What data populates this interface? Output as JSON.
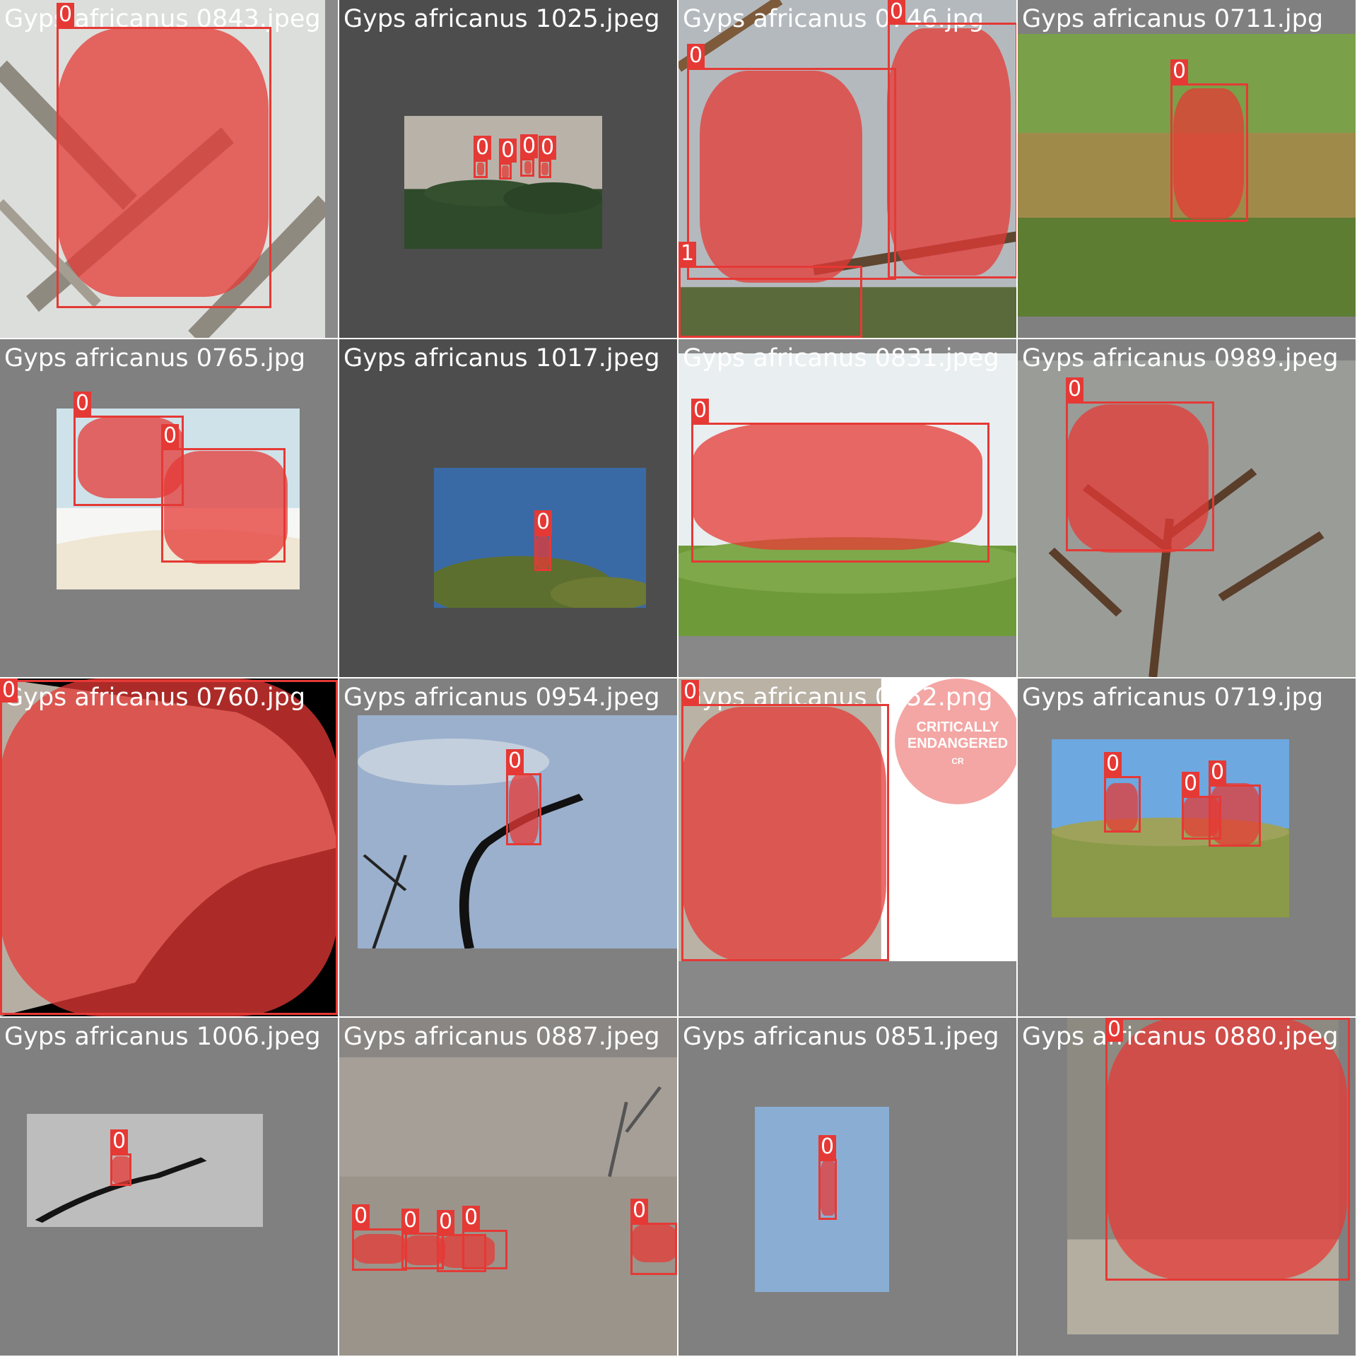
{
  "tiles": [
    {
      "title": "Gyps africanus 0843.jpeg",
      "bg": "#8a8a8a",
      "photo": {
        "l": 0,
        "t": 0,
        "w": 460,
        "h": 478,
        "scene": "branches-light"
      },
      "masks": [
        {
          "l": 80,
          "t": 40,
          "w": 300,
          "h": 380
        }
      ],
      "boxes": [
        {
          "cls": "0",
          "l": 80,
          "t": 38,
          "w": 304,
          "h": 398
        }
      ]
    },
    {
      "title": "Gyps africanus 1025.jpeg",
      "bg": "#4d4d4d",
      "photo": {
        "l": 92,
        "t": 164,
        "w": 280,
        "h": 188,
        "scene": "treetop-dusk"
      },
      "masks": [
        {
          "l": 195,
          "t": 230,
          "w": 10,
          "h": 18
        },
        {
          "l": 230,
          "t": 234,
          "w": 10,
          "h": 18
        },
        {
          "l": 262,
          "t": 228,
          "w": 10,
          "h": 18
        },
        {
          "l": 286,
          "t": 230,
          "w": 10,
          "h": 18
        }
      ],
      "boxes": [
        {
          "cls": "0",
          "l": 190,
          "t": 226,
          "w": 20,
          "h": 26
        },
        {
          "cls": "0",
          "l": 226,
          "t": 230,
          "w": 18,
          "h": 24
        },
        {
          "cls": "0",
          "l": 256,
          "t": 224,
          "w": 20,
          "h": 26
        },
        {
          "cls": "0",
          "l": 282,
          "t": 226,
          "w": 18,
          "h": 26
        }
      ]
    },
    {
      "title": "Gyps africanus 0746.jpg",
      "bg": "#888888",
      "photo": {
        "l": 0,
        "t": 0,
        "w": 478,
        "h": 478,
        "scene": "vultures-sky"
      },
      "masks": [
        {
          "l": 30,
          "t": 100,
          "w": 230,
          "h": 300
        },
        {
          "l": 295,
          "t": 40,
          "w": 175,
          "h": 350
        }
      ],
      "boxes": [
        {
          "cls": "0",
          "l": 12,
          "t": 96,
          "w": 296,
          "h": 300
        },
        {
          "cls": "0",
          "l": 296,
          "t": 32,
          "w": 184,
          "h": 362
        },
        {
          "cls": "1",
          "l": 0,
          "t": 376,
          "w": 260,
          "h": 102
        }
      ]
    },
    {
      "title": "Gyps africanus 0711.jpg",
      "bg": "#808080",
      "photo": {
        "l": 0,
        "t": 48,
        "w": 478,
        "h": 400,
        "scene": "green-field"
      },
      "masks": [
        {
          "l": 220,
          "t": 125,
          "w": 100,
          "h": 185
        }
      ],
      "boxes": [
        {
          "cls": "0",
          "l": 216,
          "t": 118,
          "w": 110,
          "h": 196
        }
      ]
    },
    {
      "title": "Gyps africanus 0765.jpg",
      "bg": "#808080",
      "photo": {
        "l": 80,
        "t": 98,
        "w": 344,
        "h": 256,
        "scene": "illustration"
      },
      "masks": [
        {
          "l": 110,
          "t": 110,
          "w": 150,
          "h": 115
        },
        {
          "l": 232,
          "t": 158,
          "w": 175,
          "h": 160
        }
      ],
      "boxes": [
        {
          "cls": "0",
          "l": 104,
          "t": 108,
          "w": 156,
          "h": 128
        },
        {
          "cls": "0",
          "l": 228,
          "t": 154,
          "w": 176,
          "h": 162
        }
      ]
    },
    {
      "title": "Gyps africanus 1017.jpeg",
      "bg": "#4d4d4d",
      "photo": {
        "l": 134,
        "t": 182,
        "w": 300,
        "h": 198,
        "scene": "blue-tree"
      },
      "masks": [
        {
          "l": 278,
          "t": 278,
          "w": 20,
          "h": 48
        }
      ],
      "boxes": [
        {
          "cls": "0",
          "l": 276,
          "t": 276,
          "w": 24,
          "h": 52
        }
      ]
    },
    {
      "title": "Gyps africanus 0831.jpeg",
      "bg": "#888888",
      "photo": {
        "l": 0,
        "t": 20,
        "w": 478,
        "h": 400,
        "scene": "wings-spread"
      },
      "masks": [
        {
          "l": 20,
          "t": 118,
          "w": 410,
          "h": 180
        }
      ],
      "boxes": [
        {
          "cls": "0",
          "l": 18,
          "t": 118,
          "w": 422,
          "h": 198
        }
      ]
    },
    {
      "title": "Gyps africanus 0989.jpeg",
      "bg": "#808080",
      "photo": {
        "l": 0,
        "t": 30,
        "w": 478,
        "h": 448,
        "scene": "grey-branches"
      },
      "masks": [
        {
          "l": 70,
          "t": 92,
          "w": 200,
          "h": 210
        }
      ],
      "boxes": [
        {
          "cls": "0",
          "l": 68,
          "t": 88,
          "w": 210,
          "h": 212
        }
      ]
    },
    {
      "title": "Gyps africanus 0760.jpg",
      "bg": "#000000",
      "photo": {
        "l": 0,
        "t": 0,
        "w": 478,
        "h": 478,
        "scene": "head-closeup"
      },
      "masks": [
        {
          "l": 0,
          "t": 0,
          "w": 478,
          "h": 478
        }
      ],
      "boxes": [
        {
          "cls": "0",
          "l": 0,
          "t": 2,
          "w": 478,
          "h": 474
        }
      ]
    },
    {
      "title": "Gyps africanus 0954.jpeg",
      "bg": "#808080",
      "photo": {
        "l": 26,
        "t": 52,
        "w": 452,
        "h": 330,
        "scene": "dead-branch-sky"
      },
      "masks": [
        {
          "l": 240,
          "t": 136,
          "w": 42,
          "h": 100
        }
      ],
      "boxes": [
        {
          "cls": "0",
          "l": 236,
          "t": 134,
          "w": 50,
          "h": 102
        }
      ]
    },
    {
      "title": "Gyps africanus 0752.png",
      "bg": "#888888",
      "photo": {
        "l": 0,
        "t": 0,
        "w": 478,
        "h": 400,
        "scene": "neck-closeup"
      },
      "masks": [
        {
          "l": 4,
          "t": 40,
          "w": 290,
          "h": 360
        }
      ],
      "boxes": [
        {
          "cls": "0",
          "l": 4,
          "t": 36,
          "w": 294,
          "h": 364
        }
      ]
    },
    {
      "title": "Gyps africanus 0719.jpg",
      "bg": "#808080",
      "photo": {
        "l": 48,
        "t": 86,
        "w": 336,
        "h": 252,
        "scene": "nest-sky"
      },
      "masks": [
        {
          "l": 124,
          "t": 148,
          "w": 46,
          "h": 68
        },
        {
          "l": 234,
          "t": 166,
          "w": 52,
          "h": 58
        },
        {
          "l": 272,
          "t": 148,
          "w": 70,
          "h": 88
        }
      ],
      "boxes": [
        {
          "cls": "0",
          "l": 122,
          "t": 138,
          "w": 52,
          "h": 80
        },
        {
          "cls": "0",
          "l": 232,
          "t": 166,
          "w": 56,
          "h": 62
        },
        {
          "cls": "0",
          "l": 270,
          "t": 150,
          "w": 74,
          "h": 88
        }
      ]
    },
    {
      "title": "Gyps africanus 1006.jpeg",
      "bg": "#808080",
      "photo": {
        "l": 38,
        "t": 136,
        "w": 334,
        "h": 160,
        "scene": "branch-grey"
      },
      "masks": [
        {
          "l": 158,
          "t": 196,
          "w": 28,
          "h": 40
        }
      ],
      "boxes": [
        {
          "cls": "0",
          "l": 156,
          "t": 192,
          "w": 30,
          "h": 46
        }
      ]
    },
    {
      "title": "Gyps africanus 0887.jpeg",
      "bg": "#8a8683",
      "photo": {
        "l": 0,
        "t": 56,
        "w": 478,
        "h": 422,
        "scene": "dusty-plain"
      },
      "masks": [
        {
          "l": 20,
          "t": 306,
          "w": 76,
          "h": 42
        },
        {
          "l": 92,
          "t": 308,
          "w": 58,
          "h": 42
        },
        {
          "l": 140,
          "t": 308,
          "w": 80,
          "h": 46
        },
        {
          "l": 414,
          "t": 292,
          "w": 64,
          "h": 54
        }
      ],
      "boxes": [
        {
          "cls": "0",
          "l": 18,
          "t": 298,
          "w": 78,
          "h": 60
        },
        {
          "cls": "0",
          "l": 88,
          "t": 304,
          "w": 60,
          "h": 52
        },
        {
          "cls": "0",
          "l": 138,
          "t": 306,
          "w": 70,
          "h": 54
        },
        {
          "cls": "0",
          "l": 174,
          "t": 300,
          "w": 64,
          "h": 56
        },
        {
          "cls": "0",
          "l": 412,
          "t": 290,
          "w": 66,
          "h": 74
        }
      ]
    },
    {
      "title": "Gyps africanus 0851.jpeg",
      "bg": "#808080",
      "photo": {
        "l": 108,
        "t": 126,
        "w": 190,
        "h": 262,
        "scene": "plain-blue"
      },
      "masks": [
        {
          "l": 200,
          "t": 202,
          "w": 24,
          "h": 78
        }
      ],
      "boxes": [
        {
          "cls": "0",
          "l": 198,
          "t": 200,
          "w": 26,
          "h": 86
        }
      ]
    },
    {
      "title": "Gyps africanus 0880.jpeg",
      "bg": "#808080",
      "photo": {
        "l": 70,
        "t": 0,
        "w": 384,
        "h": 448,
        "scene": "grass-vulture"
      },
      "masks": [
        {
          "l": 126,
          "t": 0,
          "w": 340,
          "h": 370
        }
      ],
      "boxes": [
        {
          "cls": "0",
          "l": 124,
          "t": 0,
          "w": 346,
          "h": 372
        }
      ]
    }
  ],
  "badge": {
    "line1": "CRITICALLY",
    "line2": "ENDANGERED",
    "line3": "CR"
  },
  "colors": {
    "box": "#e53935",
    "mask": "rgba(229,57,53,0.75)"
  }
}
